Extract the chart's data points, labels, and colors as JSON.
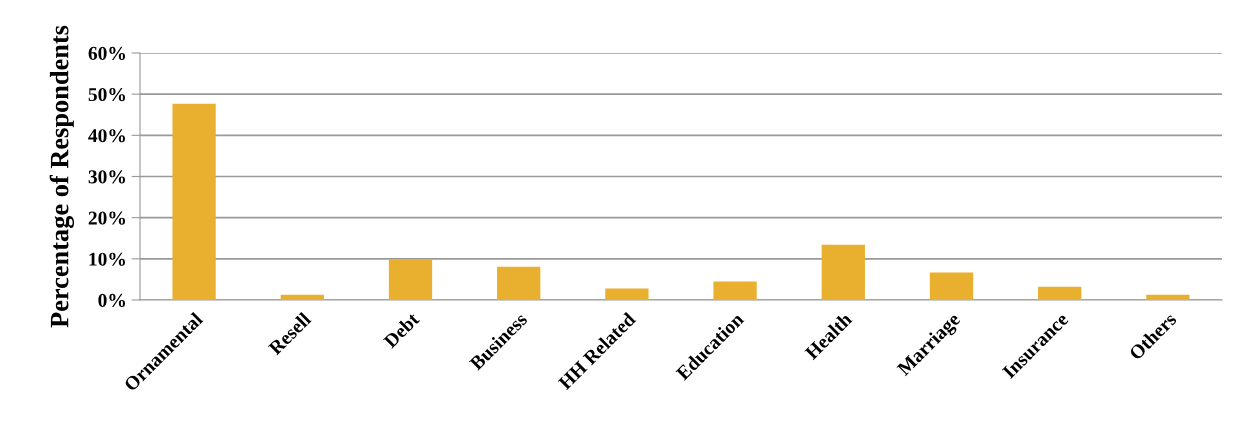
{
  "chart_data": {
    "type": "bar",
    "ylabel": "Percentage of Respondents",
    "categories": [
      "Ornamental",
      "Resell",
      "Debt",
      "Business",
      "HH Related",
      "Education",
      "Health",
      "Marriage",
      "Insurance",
      "Others"
    ],
    "values": [
      47.7,
      1.3,
      9.8,
      8.1,
      2.8,
      4.5,
      13.4,
      6.7,
      3.2,
      1.3
    ],
    "color": "#e9b030",
    "ylim": [
      0,
      60
    ],
    "yticks": [
      {
        "value": 0,
        "label": "0%"
      },
      {
        "value": 10,
        "label": "10%"
      },
      {
        "value": 20,
        "label": "20%"
      },
      {
        "value": 30,
        "label": "30%"
      },
      {
        "value": 40,
        "label": "40%"
      },
      {
        "value": 50,
        "label": "50%"
      },
      {
        "value": 60,
        "label": "60%"
      }
    ],
    "grid": "y",
    "legend": false
  }
}
